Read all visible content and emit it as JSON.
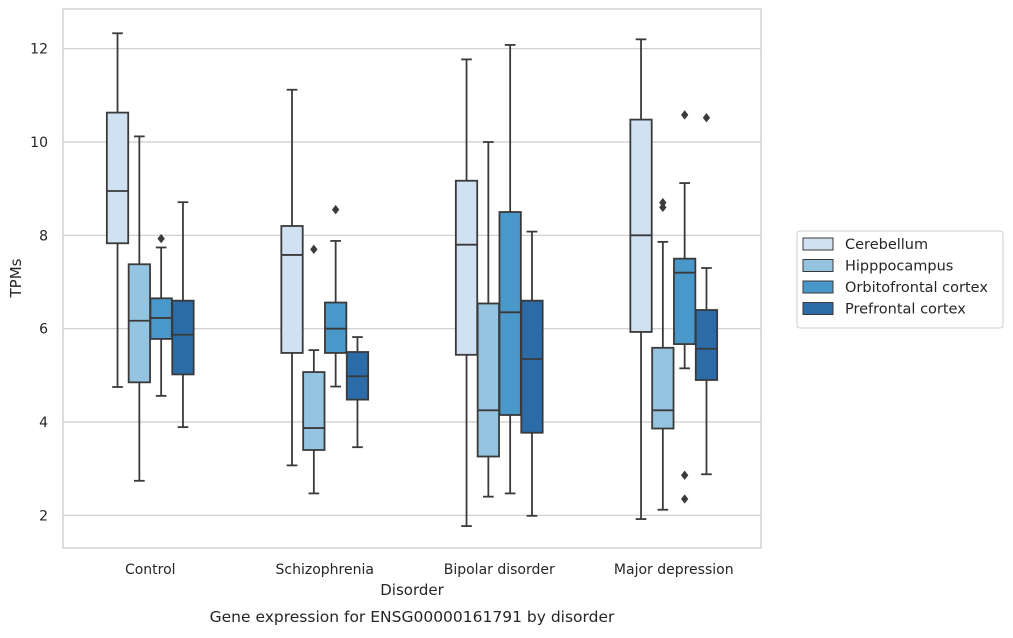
{
  "caption": "Gene expression for ENSG00000161791 by disorder",
  "chart_data": {
    "type": "boxplot",
    "xlabel": "Disorder",
    "ylabel": "TPMs",
    "ylim": [
      1.3,
      12.85
    ],
    "yticks": [
      2,
      4,
      6,
      8,
      10,
      12
    ],
    "grid": true,
    "legend_position": "right",
    "categories": [
      "Control",
      "Schizophrenia",
      "Bipolar disorder",
      "Major depression"
    ],
    "series": [
      {
        "name": "Cerebellum",
        "color": "#d0e1f2",
        "boxes": [
          {
            "whisker_low": 4.75,
            "q1": 7.83,
            "median": 8.95,
            "q3": 10.63,
            "whisker_high": 12.33,
            "outliers": []
          },
          {
            "whisker_low": 3.07,
            "q1": 5.48,
            "median": 7.58,
            "q3": 8.2,
            "whisker_high": 11.12,
            "outliers": []
          },
          {
            "whisker_low": 1.77,
            "q1": 5.44,
            "median": 7.8,
            "q3": 9.17,
            "whisker_high": 11.77,
            "outliers": []
          },
          {
            "whisker_low": 1.92,
            "q1": 5.93,
            "median": 8.0,
            "q3": 10.48,
            "whisker_high": 12.2,
            "outliers": []
          }
        ]
      },
      {
        "name": "Hipppocampus",
        "color": "#94c4df",
        "boxes": [
          {
            "whisker_low": 2.74,
            "q1": 4.85,
            "median": 6.17,
            "q3": 7.38,
            "whisker_high": 10.12,
            "outliers": []
          },
          {
            "whisker_low": 2.47,
            "q1": 3.4,
            "median": 3.87,
            "q3": 5.07,
            "whisker_high": 5.54,
            "outliers": [
              7.7
            ]
          },
          {
            "whisker_low": 2.4,
            "q1": 3.26,
            "median": 4.25,
            "q3": 6.54,
            "whisker_high": 10.0,
            "outliers": []
          },
          {
            "whisker_low": 2.12,
            "q1": 3.86,
            "median": 4.25,
            "q3": 5.59,
            "whisker_high": 7.86,
            "outliers": [
              8.6,
              8.7
            ]
          }
        ]
      },
      {
        "name": "Orbitofrontal cortex",
        "color": "#4a98c9",
        "boxes": [
          {
            "whisker_low": 4.56,
            "q1": 5.78,
            "median": 6.23,
            "q3": 6.65,
            "whisker_high": 7.74,
            "outliers": [
              7.93
            ]
          },
          {
            "whisker_low": 4.76,
            "q1": 5.48,
            "median": 6.0,
            "q3": 6.56,
            "whisker_high": 7.88,
            "outliers": [
              8.55
            ]
          },
          {
            "whisker_low": 2.47,
            "q1": 4.15,
            "median": 6.35,
            "q3": 8.5,
            "whisker_high": 12.08,
            "outliers": []
          },
          {
            "whisker_low": 5.15,
            "q1": 5.67,
            "median": 7.2,
            "q3": 7.5,
            "whisker_high": 9.12,
            "outliers": [
              10.58,
              2.86,
              2.35
            ]
          }
        ]
      },
      {
        "name": "Prefrontal cortex",
        "color": "#2a6ba8",
        "boxes": [
          {
            "whisker_low": 3.89,
            "q1": 5.02,
            "median": 5.87,
            "q3": 6.6,
            "whisker_high": 8.71,
            "outliers": []
          },
          {
            "whisker_low": 3.46,
            "q1": 4.48,
            "median": 4.98,
            "q3": 5.5,
            "whisker_high": 5.82,
            "outliers": []
          },
          {
            "whisker_low": 1.99,
            "q1": 3.77,
            "median": 5.35,
            "q3": 6.6,
            "whisker_high": 8.08,
            "outliers": []
          },
          {
            "whisker_low": 2.88,
            "q1": 4.9,
            "median": 5.57,
            "q3": 6.4,
            "whisker_high": 7.3,
            "outliers": [
              10.52
            ]
          }
        ]
      }
    ]
  }
}
